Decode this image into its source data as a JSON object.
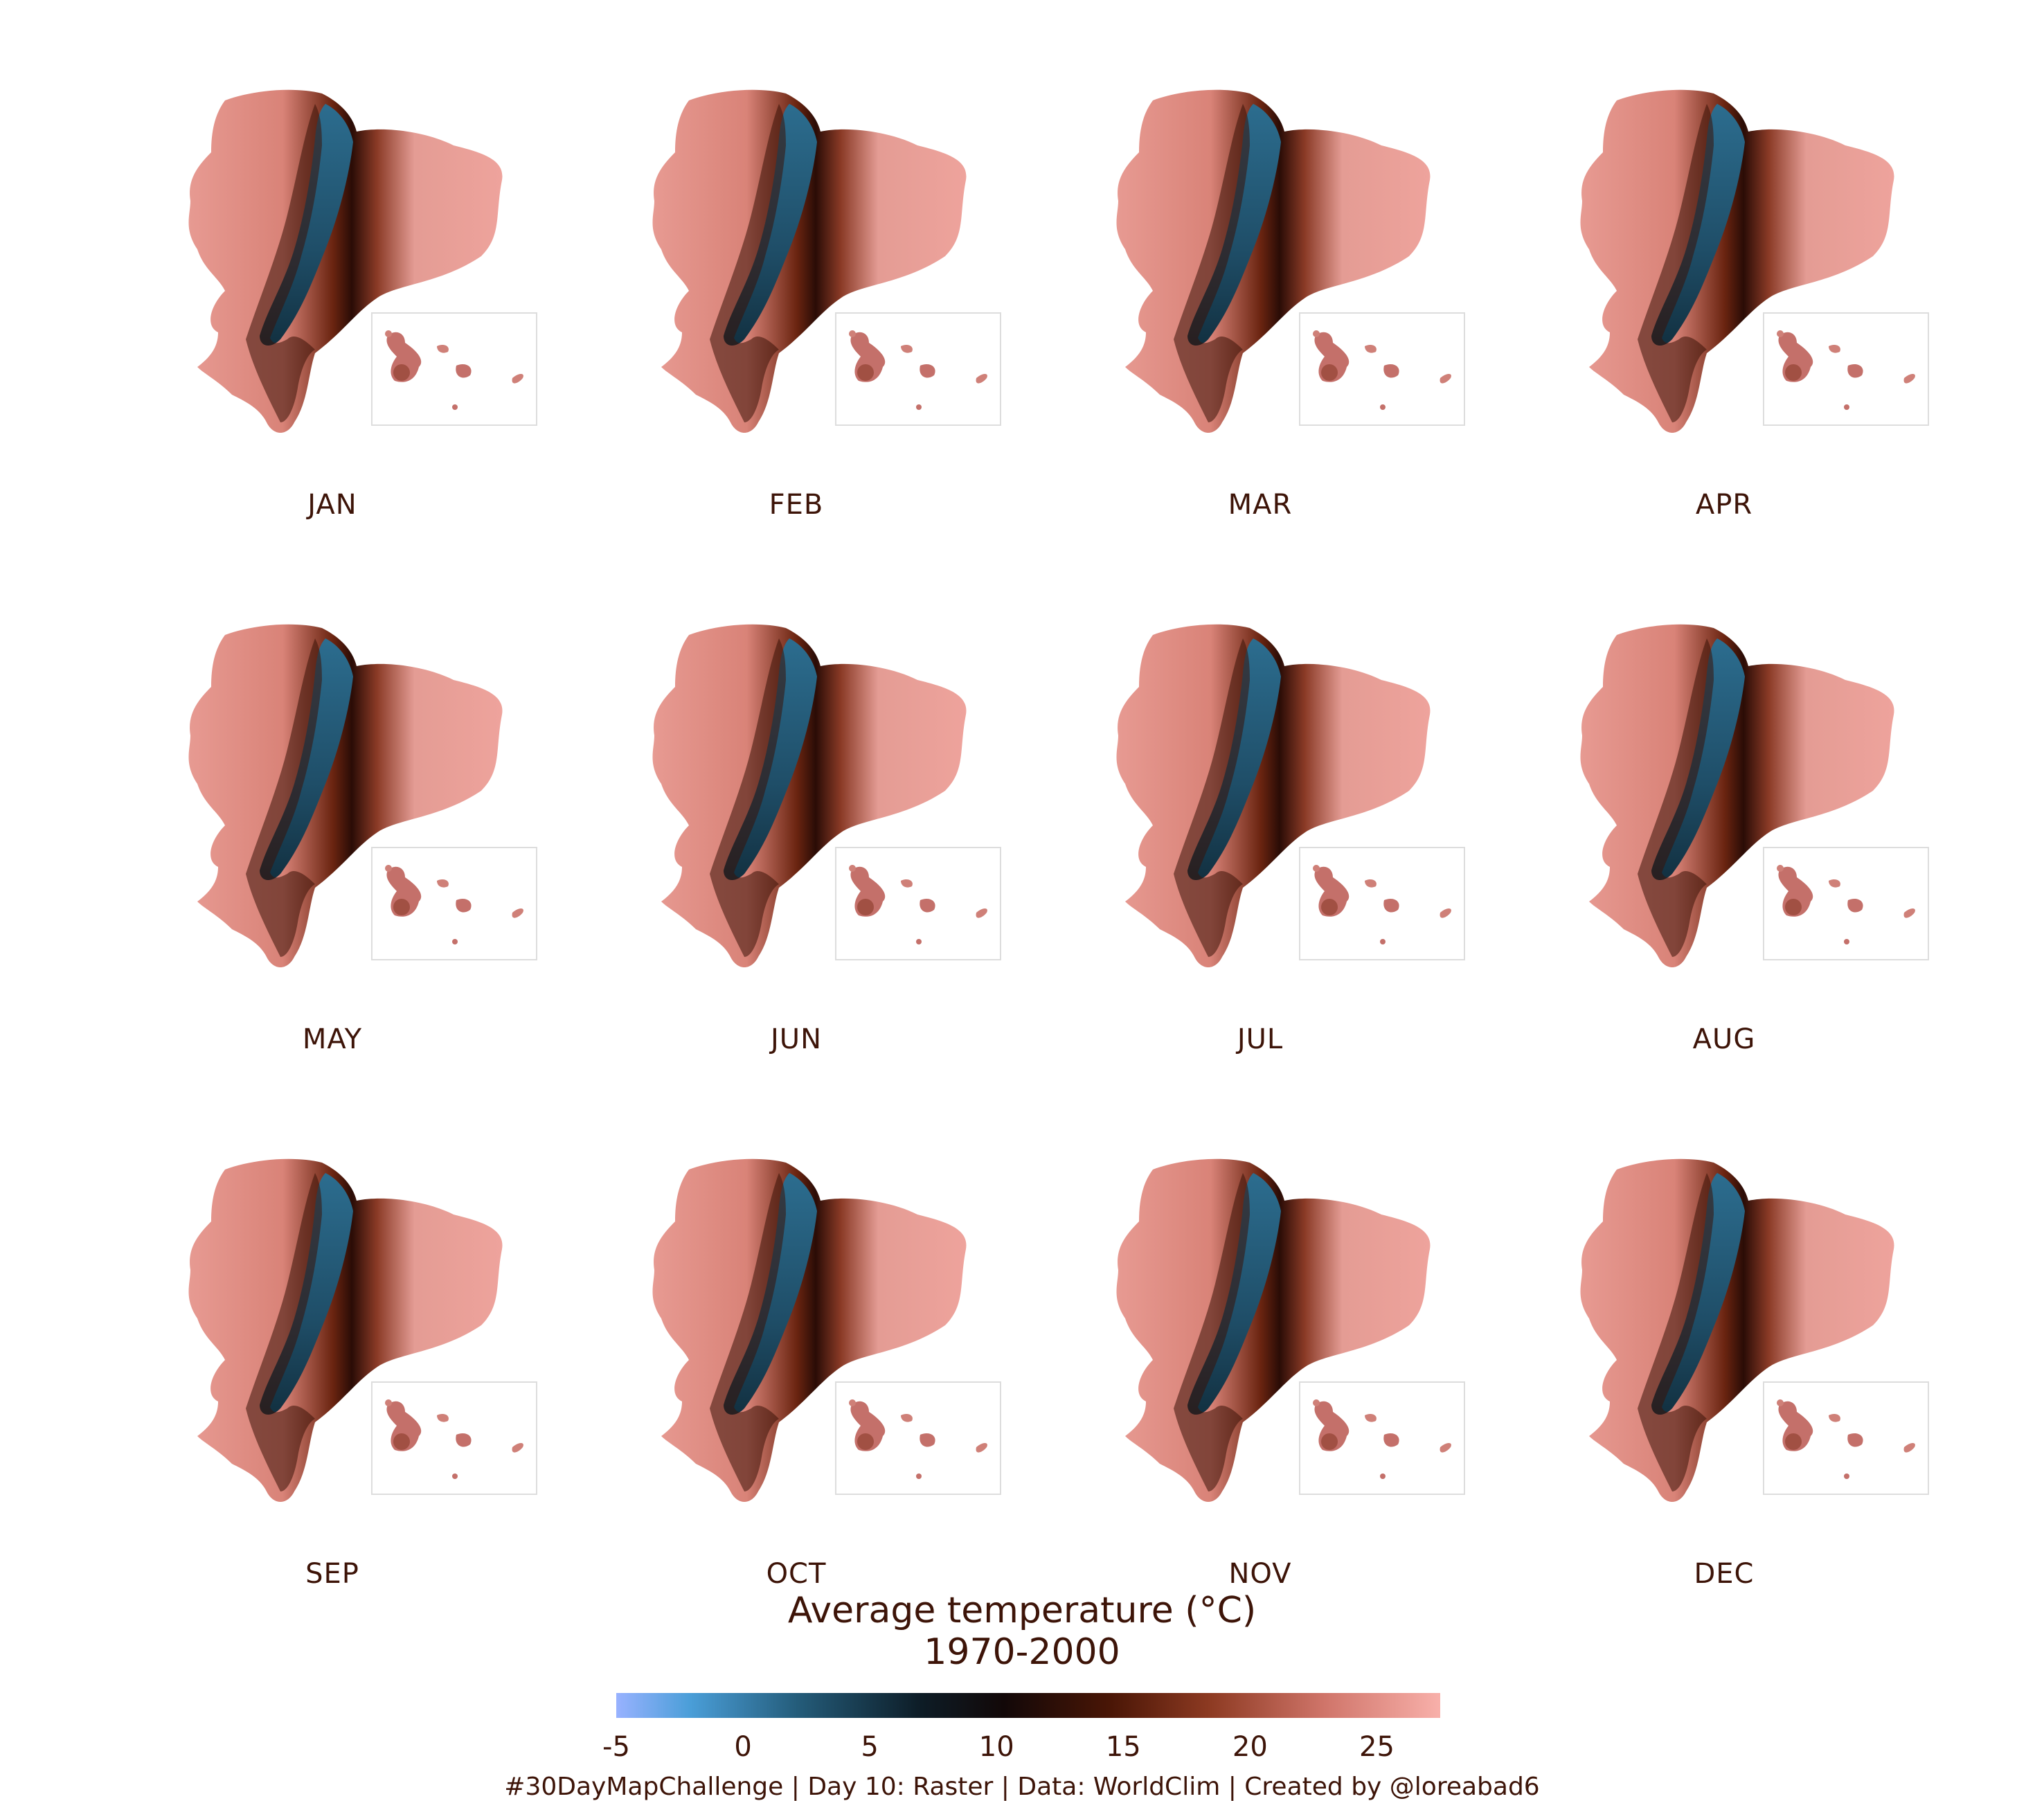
{
  "panels": [
    {
      "label": "JAN"
    },
    {
      "label": "FEB"
    },
    {
      "label": "MAR"
    },
    {
      "label": "APR"
    },
    {
      "label": "MAY"
    },
    {
      "label": "JUN"
    },
    {
      "label": "JUL"
    },
    {
      "label": "AUG"
    },
    {
      "label": "SEP"
    },
    {
      "label": "OCT"
    },
    {
      "label": "NOV"
    },
    {
      "label": "DEC"
    }
  ],
  "legend": {
    "title_line1": "Average temperature (°C)",
    "title_line2": "1970-2000",
    "ticks": [
      "-5",
      "0",
      "5",
      "10",
      "15",
      "20",
      "25"
    ],
    "range": [
      -5,
      27.5
    ],
    "colors": {
      "cold": "#98b2ff",
      "cool": "#245c7a",
      "mid": "#0d1c26",
      "warm": "#8d3a22",
      "hot": "#f8b0aa"
    }
  },
  "caption": "#30DayMapChallenge | Day 10: Raster | Data: WorldClim | Created by @loreabad6"
}
